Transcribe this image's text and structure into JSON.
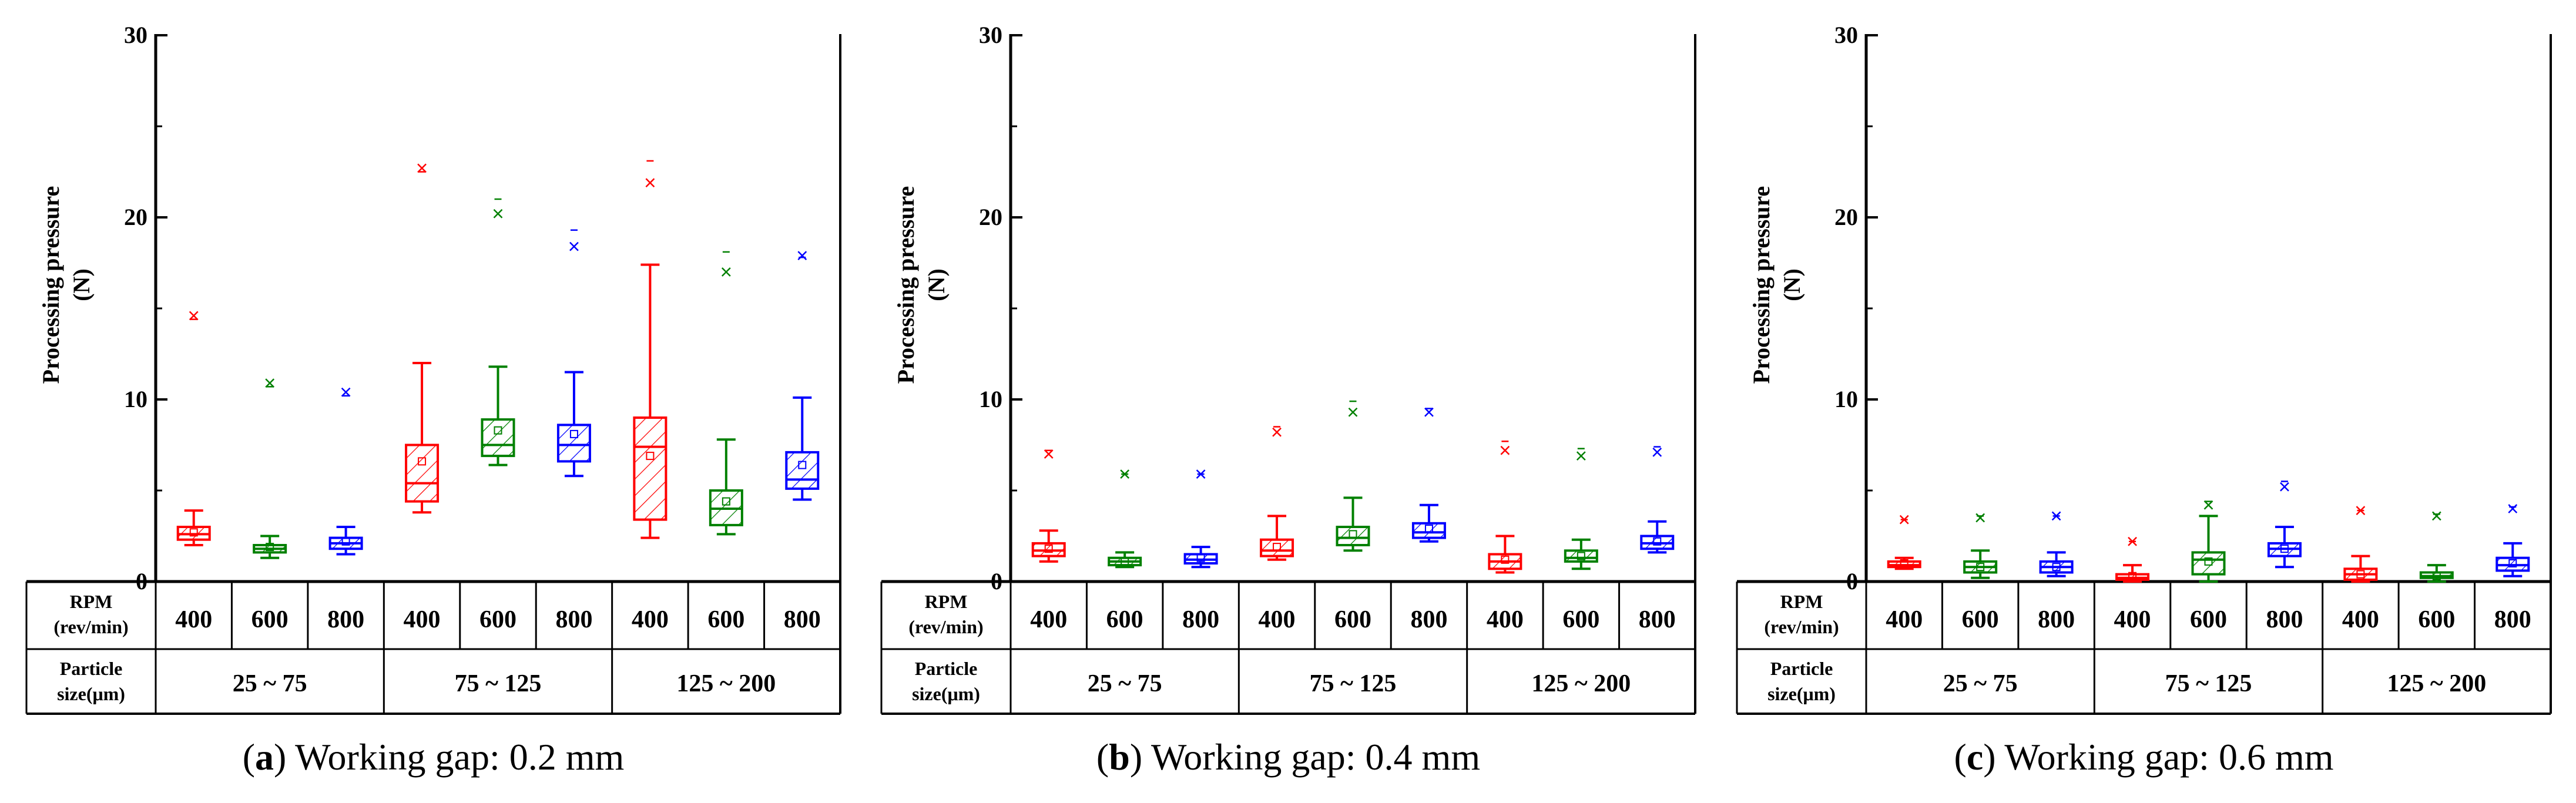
{
  "figure": {
    "labels": {
      "rpm_line1": "RPM",
      "rpm_line2": "(rev/min)",
      "particle_line1": "Particle",
      "particle_line2": "size(μm)"
    },
    "colors": {
      "400": "#ff0000",
      "600": "#008000",
      "800": "#0000ff",
      "axis": "#000000"
    }
  },
  "chart_data": [
    {
      "type": "box",
      "caption_letter": "a",
      "caption_text": ") Working gap: 0.2 mm",
      "ylabel_line1": "Processing pressure",
      "ylabel_line2": "(N)",
      "ylim": [
        0,
        30
      ],
      "yticks": [
        "0",
        "10",
        "20",
        "30"
      ],
      "groups": [
        "25 ~ 75",
        "75 ~ 125",
        "125 ~ 200"
      ],
      "rpms": [
        "400",
        "600",
        "800"
      ],
      "boxes": [
        {
          "group": "25 ~ 75",
          "rpm": "400",
          "min": 2.0,
          "q1": 2.3,
          "median": 2.6,
          "q3": 3.0,
          "max": 3.9,
          "mean": 2.7,
          "outliers": [
            14.6
          ],
          "max_mark": 14.4
        },
        {
          "group": "25 ~ 75",
          "rpm": "600",
          "min": 1.3,
          "q1": 1.6,
          "median": 1.8,
          "q3": 2.0,
          "max": 2.5,
          "mean": 1.9,
          "outliers": [
            10.9
          ],
          "max_mark": 10.7
        },
        {
          "group": "25 ~ 75",
          "rpm": "800",
          "min": 1.5,
          "q1": 1.8,
          "median": 2.1,
          "q3": 2.4,
          "max": 3.0,
          "mean": 2.2,
          "outliers": [
            10.4
          ],
          "max_mark": 10.2
        },
        {
          "group": "75 ~ 125",
          "rpm": "400",
          "min": 3.8,
          "q1": 4.4,
          "median": 5.4,
          "q3": 7.5,
          "max": 12.0,
          "mean": 6.6,
          "outliers": [
            22.7
          ],
          "max_mark": 22.5
        },
        {
          "group": "75 ~ 125",
          "rpm": "600",
          "min": 6.4,
          "q1": 6.9,
          "median": 7.5,
          "q3": 8.9,
          "max": 11.8,
          "mean": 8.3,
          "outliers": [
            20.2
          ],
          "max_mark": 21.0
        },
        {
          "group": "75 ~ 125",
          "rpm": "800",
          "min": 5.8,
          "q1": 6.6,
          "median": 7.5,
          "q3": 8.6,
          "max": 11.5,
          "mean": 8.1,
          "outliers": [
            18.4
          ],
          "max_mark": 19.3
        },
        {
          "group": "125 ~ 200",
          "rpm": "400",
          "min": 2.4,
          "q1": 3.4,
          "median": 7.4,
          "q3": 9.0,
          "max": 17.4,
          "mean": 6.9,
          "outliers": [
            21.9
          ],
          "max_mark": 23.1
        },
        {
          "group": "125 ~ 200",
          "rpm": "600",
          "min": 2.6,
          "q1": 3.1,
          "median": 4.0,
          "q3": 5.0,
          "max": 7.8,
          "mean": 4.4,
          "outliers": [
            17.0
          ],
          "max_mark": 18.1
        },
        {
          "group": "125 ~ 200",
          "rpm": "800",
          "min": 4.5,
          "q1": 5.1,
          "median": 5.6,
          "q3": 7.1,
          "max": 10.1,
          "mean": 6.4,
          "outliers": [
            17.9
          ],
          "max_mark": 17.8
        }
      ]
    },
    {
      "type": "box",
      "caption_letter": "b",
      "caption_text": ") Working gap: 0.4 mm",
      "ylabel_line1": "Processing pressure",
      "ylabel_line2": "(N)",
      "ylim": [
        0,
        30
      ],
      "yticks": [
        "0",
        "10",
        "20",
        "30"
      ],
      "groups": [
        "25 ~ 75",
        "75 ~ 125",
        "125 ~ 200"
      ],
      "rpms": [
        "400",
        "600",
        "800"
      ],
      "boxes": [
        {
          "group": "25 ~ 75",
          "rpm": "400",
          "min": 1.1,
          "q1": 1.4,
          "median": 1.7,
          "q3": 2.1,
          "max": 2.8,
          "mean": 1.8,
          "outliers": [
            7.0
          ],
          "max_mark": 7.2
        },
        {
          "group": "25 ~ 75",
          "rpm": "600",
          "min": 0.8,
          "q1": 0.9,
          "median": 1.1,
          "q3": 1.3,
          "max": 1.6,
          "mean": 1.1,
          "outliers": [
            5.9
          ],
          "max_mark": 5.9
        },
        {
          "group": "25 ~ 75",
          "rpm": "800",
          "min": 0.8,
          "q1": 1.0,
          "median": 1.2,
          "q3": 1.5,
          "max": 1.9,
          "mean": 1.3,
          "outliers": [
            5.9
          ],
          "max_mark": 5.9
        },
        {
          "group": "75 ~ 125",
          "rpm": "400",
          "min": 1.2,
          "q1": 1.4,
          "median": 1.7,
          "q3": 2.3,
          "max": 3.6,
          "mean": 1.9,
          "outliers": [
            8.2
          ],
          "max_mark": 8.5
        },
        {
          "group": "75 ~ 125",
          "rpm": "600",
          "min": 1.7,
          "q1": 2.0,
          "median": 2.4,
          "q3": 3.0,
          "max": 4.6,
          "mean": 2.6,
          "outliers": [
            9.3
          ],
          "max_mark": 9.9
        },
        {
          "group": "75 ~ 125",
          "rpm": "800",
          "min": 2.2,
          "q1": 2.4,
          "median": 2.7,
          "q3": 3.2,
          "max": 4.2,
          "mean": 2.9,
          "outliers": [
            9.3
          ],
          "max_mark": 9.5
        },
        {
          "group": "125 ~ 200",
          "rpm": "400",
          "min": 0.5,
          "q1": 0.7,
          "median": 1.1,
          "q3": 1.5,
          "max": 2.5,
          "mean": 1.2,
          "outliers": [
            7.2
          ],
          "max_mark": 7.7
        },
        {
          "group": "125 ~ 200",
          "rpm": "600",
          "min": 0.7,
          "q1": 1.1,
          "median": 1.3,
          "q3": 1.7,
          "max": 2.3,
          "mean": 1.4,
          "outliers": [
            6.9
          ],
          "max_mark": 7.3
        },
        {
          "group": "125 ~ 200",
          "rpm": "800",
          "min": 1.6,
          "q1": 1.8,
          "median": 2.1,
          "q3": 2.5,
          "max": 3.3,
          "mean": 2.2,
          "outliers": [
            7.1
          ],
          "max_mark": 7.4
        }
      ]
    },
    {
      "type": "box",
      "caption_letter": "c",
      "caption_text": ") Working gap: 0.6 mm",
      "ylabel_line1": "Processing pressure",
      "ylabel_line2": "(N)",
      "ylim": [
        0,
        30
      ],
      "yticks": [
        "0",
        "10",
        "20",
        "30"
      ],
      "groups": [
        "25 ~ 75",
        "75 ~ 125",
        "125 ~ 200"
      ],
      "rpms": [
        "400",
        "600",
        "800"
      ],
      "boxes": [
        {
          "group": "25 ~ 75",
          "rpm": "400",
          "min": 0.7,
          "q1": 0.8,
          "median": 0.9,
          "q3": 1.1,
          "max": 1.3,
          "mean": 1.0,
          "outliers": [
            3.4
          ],
          "max_mark": 3.4
        },
        {
          "group": "25 ~ 75",
          "rpm": "600",
          "min": 0.2,
          "q1": 0.5,
          "median": 0.8,
          "q3": 1.1,
          "max": 1.7,
          "mean": 0.8,
          "outliers": [
            3.5
          ],
          "max_mark": 3.6
        },
        {
          "group": "25 ~ 75",
          "rpm": "800",
          "min": 0.3,
          "q1": 0.5,
          "median": 0.8,
          "q3": 1.1,
          "max": 1.6,
          "mean": 0.8,
          "outliers": [
            3.6
          ],
          "max_mark": 3.6
        },
        {
          "group": "75 ~ 125",
          "rpm": "400",
          "min": 0.0,
          "q1": 0.1,
          "median": 0.2,
          "q3": 0.4,
          "max": 0.9,
          "mean": 0.3,
          "outliers": [
            2.2
          ],
          "max_mark": 2.2
        },
        {
          "group": "75 ~ 125",
          "rpm": "600",
          "min": 0.0,
          "q1": 0.4,
          "median": 1.2,
          "q3": 1.6,
          "max": 3.6,
          "mean": 1.1,
          "outliers": [
            4.2
          ],
          "max_mark": 4.4
        },
        {
          "group": "75 ~ 125",
          "rpm": "800",
          "min": 0.8,
          "q1": 1.4,
          "median": 1.8,
          "q3": 2.1,
          "max": 3.0,
          "mean": 1.8,
          "outliers": [
            5.2
          ],
          "max_mark": 5.5
        },
        {
          "group": "125 ~ 200",
          "rpm": "400",
          "min": 0.0,
          "q1": 0.1,
          "median": 0.4,
          "q3": 0.7,
          "max": 1.4,
          "mean": 0.4,
          "outliers": [
            3.9
          ],
          "max_mark": 3.9
        },
        {
          "group": "125 ~ 200",
          "rpm": "600",
          "min": 0.0,
          "q1": 0.2,
          "median": 0.3,
          "q3": 0.5,
          "max": 0.9,
          "mean": 0.3,
          "outliers": [
            3.6
          ],
          "max_mark": 3.7
        },
        {
          "group": "125 ~ 200",
          "rpm": "800",
          "min": 0.3,
          "q1": 0.6,
          "median": 0.9,
          "q3": 1.3,
          "max": 2.1,
          "mean": 1.0,
          "outliers": [
            4.0
          ],
          "max_mark": 4.1
        }
      ]
    }
  ]
}
